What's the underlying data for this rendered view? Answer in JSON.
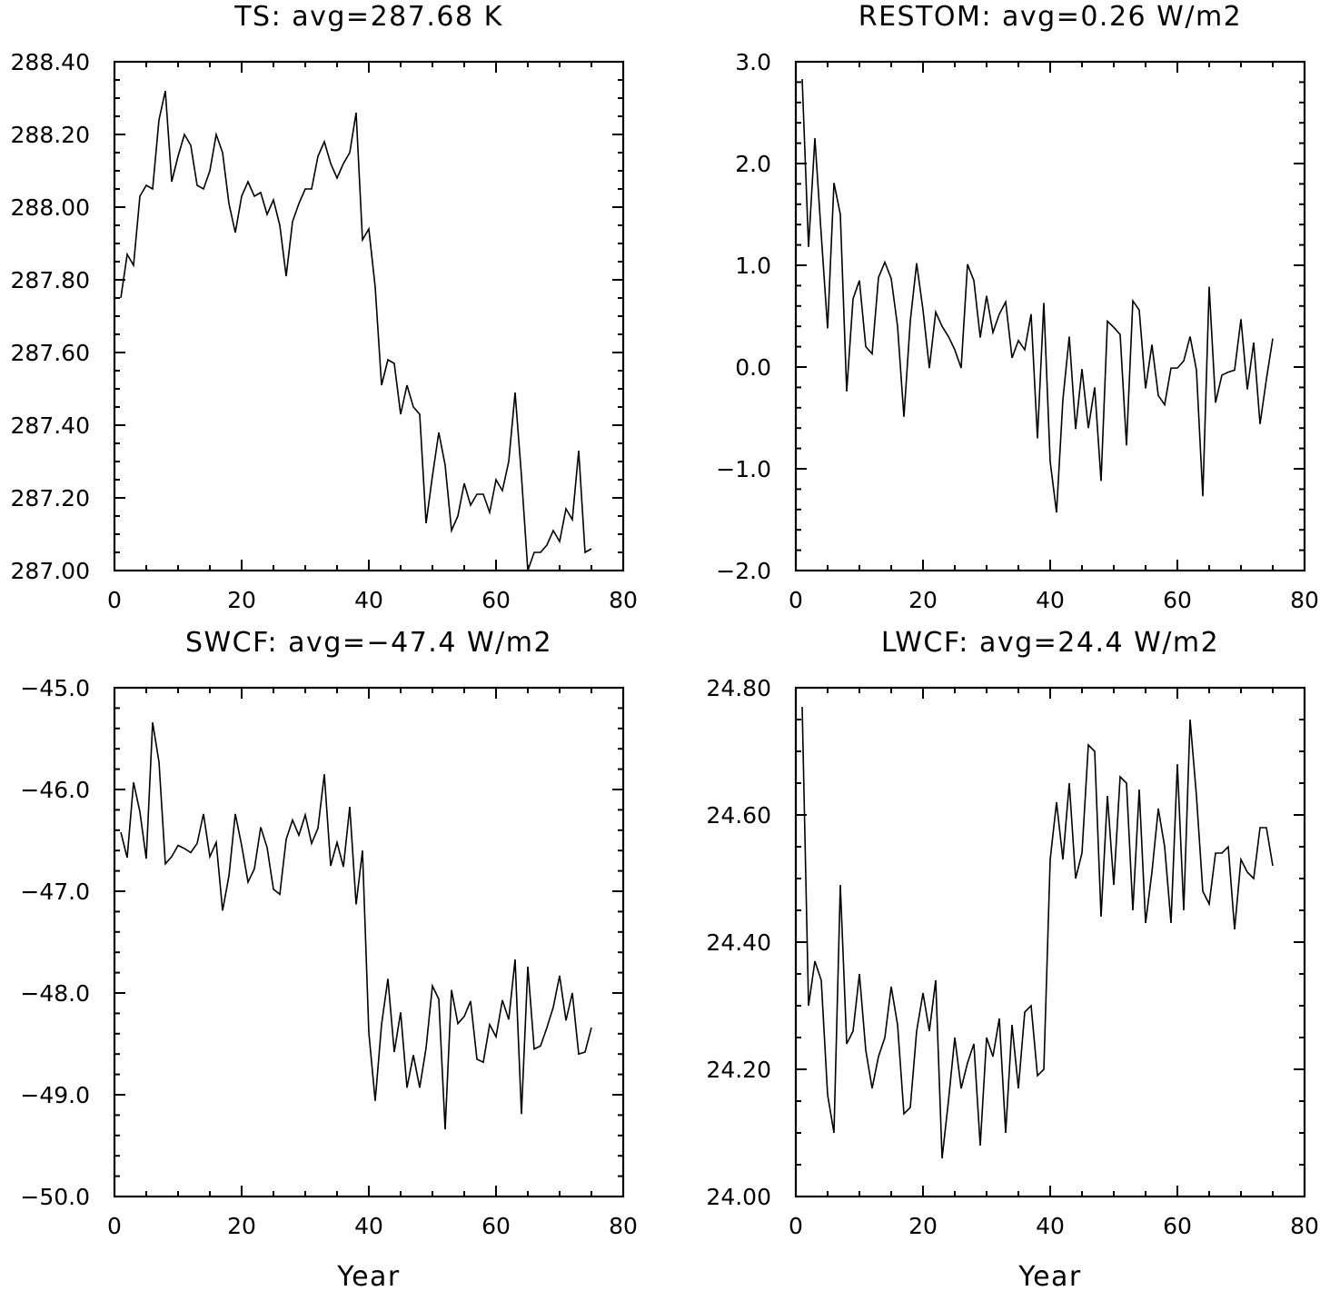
{
  "chart_data": [
    {
      "type": "line",
      "title": "TS: avg=287.68 K",
      "xlabel": "",
      "ylabel": "",
      "xlim": [
        0,
        80
      ],
      "ylim": [
        287.0,
        288.4
      ],
      "xticks": [
        0,
        20,
        40,
        60,
        80
      ],
      "xtick_labels": [
        "0",
        "20",
        "40",
        "60",
        "80"
      ],
      "yticks": [
        287.0,
        287.2,
        287.4,
        287.6,
        287.8,
        288.0,
        288.2,
        288.4
      ],
      "ytick_labels": [
        "287.00",
        "287.20",
        "287.40",
        "287.60",
        "287.80",
        "288.00",
        "288.20",
        "288.40"
      ],
      "x_minor_step": 5,
      "y_minor_step": 0.05,
      "x": [
        1,
        2,
        3,
        4,
        5,
        6,
        7,
        8,
        9,
        10,
        11,
        12,
        13,
        14,
        15,
        16,
        17,
        18,
        19,
        20,
        21,
        22,
        23,
        24,
        25,
        26,
        27,
        28,
        29,
        30,
        31,
        32,
        33,
        34,
        35,
        36,
        37,
        38,
        39,
        40,
        41,
        42,
        43,
        44,
        45,
        46,
        47,
        48,
        49,
        50,
        51,
        52,
        53,
        54,
        55,
        56,
        57,
        58,
        59,
        60,
        61,
        62,
        63,
        64,
        65,
        66,
        67,
        68,
        69,
        70,
        71,
        72,
        73,
        74,
        75
      ],
      "y": [
        287.75,
        287.87,
        287.84,
        288.03,
        288.06,
        288.05,
        288.24,
        288.32,
        288.07,
        288.14,
        288.2,
        288.17,
        288.06,
        288.05,
        288.1,
        288.2,
        288.15,
        288.01,
        287.93,
        288.03,
        288.07,
        288.03,
        288.04,
        287.98,
        288.02,
        287.95,
        287.81,
        287.96,
        288.01,
        288.05,
        288.05,
        288.14,
        288.18,
        288.12,
        288.08,
        288.12,
        288.15,
        288.26,
        287.91,
        287.94,
        287.78,
        287.51,
        287.58,
        287.57,
        287.43,
        287.51,
        287.45,
        287.43,
        287.13,
        287.26,
        287.38,
        287.29,
        287.11,
        287.15,
        287.24,
        287.18,
        287.21,
        287.21,
        287.16,
        287.25,
        287.22,
        287.3,
        287.49,
        287.26,
        287.0,
        287.05,
        287.05,
        287.07,
        287.11,
        287.08,
        287.17,
        287.14,
        287.33,
        287.05,
        287.06
      ],
      "grid": false
    },
    {
      "type": "line",
      "title": "RESTOM: avg=0.26 W/m2",
      "xlabel": "",
      "ylabel": "",
      "xlim": [
        0,
        80
      ],
      "ylim": [
        -2.0,
        3.0
      ],
      "xticks": [
        0,
        20,
        40,
        60,
        80
      ],
      "xtick_labels": [
        "0",
        "20",
        "40",
        "60",
        "80"
      ],
      "yticks": [
        -2.0,
        -1.0,
        0.0,
        1.0,
        2.0,
        3.0
      ],
      "ytick_labels": [
        "−2.0",
        "−1.0",
        "0.0",
        "1.0",
        "2.0",
        "3.0"
      ],
      "x_minor_step": 5,
      "y_minor_step": 0.2,
      "x": [
        1,
        2,
        3,
        4,
        5,
        6,
        7,
        8,
        9,
        10,
        11,
        12,
        13,
        14,
        15,
        16,
        17,
        18,
        19,
        20,
        21,
        22,
        23,
        24,
        25,
        26,
        27,
        28,
        29,
        30,
        31,
        32,
        33,
        34,
        35,
        36,
        37,
        38,
        39,
        40,
        41,
        42,
        43,
        44,
        45,
        46,
        47,
        48,
        49,
        50,
        51,
        52,
        53,
        54,
        55,
        56,
        57,
        58,
        59,
        60,
        61,
        62,
        63,
        64,
        65,
        66,
        67,
        68,
        69,
        70,
        71,
        72,
        73,
        74,
        75
      ],
      "y": [
        2.83,
        1.18,
        2.25,
        1.3,
        0.38,
        1.81,
        1.5,
        -0.24,
        0.67,
        0.85,
        0.2,
        0.13,
        0.88,
        1.03,
        0.87,
        0.4,
        -0.49,
        0.45,
        1.02,
        0.56,
        -0.01,
        0.54,
        0.4,
        0.3,
        0.17,
        -0.01,
        1.01,
        0.85,
        0.29,
        0.7,
        0.34,
        0.52,
        0.64,
        0.09,
        0.26,
        0.17,
        0.52,
        -0.7,
        0.63,
        -0.93,
        -1.43,
        -0.32,
        0.3,
        -0.61,
        -0.02,
        -0.6,
        -0.2,
        -1.12,
        0.45,
        0.39,
        0.32,
        -0.77,
        0.65,
        0.56,
        -0.21,
        0.22,
        -0.28,
        -0.37,
        -0.01,
        -0.01,
        0.06,
        0.3,
        -0.03,
        -1.27,
        0.79,
        -0.35,
        -0.08,
        -0.05,
        -0.03,
        0.47,
        -0.22,
        0.24,
        -0.56,
        -0.12,
        0.28
      ],
      "grid": false
    },
    {
      "type": "line",
      "title": "SWCF: avg=−47.4 W/m2",
      "xlabel": "Year",
      "ylabel": "",
      "xlim": [
        0,
        80
      ],
      "ylim": [
        -50.0,
        -45.0
      ],
      "xticks": [
        0,
        20,
        40,
        60,
        80
      ],
      "xtick_labels": [
        "0",
        "20",
        "40",
        "60",
        "80"
      ],
      "yticks": [
        -50.0,
        -49.0,
        -48.0,
        -47.0,
        -46.0,
        -45.0
      ],
      "ytick_labels": [
        "−50.0",
        "−49.0",
        "−48.0",
        "−47.0",
        "−46.0",
        "−45.0"
      ],
      "x_minor_step": 5,
      "y_minor_step": 0.2,
      "x": [
        1,
        2,
        3,
        4,
        5,
        6,
        7,
        8,
        9,
        10,
        11,
        12,
        13,
        14,
        15,
        16,
        17,
        18,
        19,
        20,
        21,
        22,
        23,
        24,
        25,
        26,
        27,
        28,
        29,
        30,
        31,
        32,
        33,
        34,
        35,
        36,
        37,
        38,
        39,
        40,
        41,
        42,
        43,
        44,
        45,
        46,
        47,
        48,
        49,
        50,
        51,
        52,
        53,
        54,
        55,
        56,
        57,
        58,
        59,
        60,
        61,
        62,
        63,
        64,
        65,
        66,
        67,
        68,
        69,
        70,
        71,
        72,
        73,
        74,
        75
      ],
      "y": [
        -46.42,
        -46.67,
        -45.93,
        -46.22,
        -46.68,
        -45.34,
        -45.73,
        -46.73,
        -46.66,
        -46.55,
        -46.58,
        -46.62,
        -46.53,
        -46.24,
        -46.66,
        -46.52,
        -47.19,
        -46.85,
        -46.24,
        -46.55,
        -46.91,
        -46.78,
        -46.37,
        -46.57,
        -46.98,
        -47.03,
        -46.49,
        -46.3,
        -46.45,
        -46.25,
        -46.53,
        -46.38,
        -45.85,
        -46.75,
        -46.52,
        -46.76,
        -46.17,
        -47.13,
        -46.6,
        -48.39,
        -49.06,
        -48.31,
        -47.86,
        -48.58,
        -48.19,
        -48.93,
        -48.61,
        -48.93,
        -48.54,
        -47.93,
        -48.06,
        -49.34,
        -47.97,
        -48.3,
        -48.23,
        -48.08,
        -48.65,
        -48.68,
        -48.31,
        -48.43,
        -48.07,
        -48.26,
        -47.67,
        -49.19,
        -47.74,
        -48.55,
        -48.52,
        -48.34,
        -48.14,
        -47.83,
        -48.27,
        -48.0,
        -48.6,
        -48.58,
        -48.34
      ],
      "grid": false
    },
    {
      "type": "line",
      "title": "LWCF: avg=24.4 W/m2",
      "xlabel": "Year",
      "ylabel": "",
      "xlim": [
        0,
        80
      ],
      "ylim": [
        24.0,
        24.8
      ],
      "xticks": [
        0,
        20,
        40,
        60,
        80
      ],
      "xtick_labels": [
        "0",
        "20",
        "40",
        "60",
        "80"
      ],
      "yticks": [
        24.0,
        24.2,
        24.4,
        24.6,
        24.8
      ],
      "ytick_labels": [
        "24.00",
        "24.20",
        "24.40",
        "24.60",
        "24.80"
      ],
      "x_minor_step": 5,
      "y_minor_step": 0.05,
      "x": [
        1,
        2,
        3,
        4,
        5,
        6,
        7,
        8,
        9,
        10,
        11,
        12,
        13,
        14,
        15,
        16,
        17,
        18,
        19,
        20,
        21,
        22,
        23,
        24,
        25,
        26,
        27,
        28,
        29,
        30,
        31,
        32,
        33,
        34,
        35,
        36,
        37,
        38,
        39,
        40,
        41,
        42,
        43,
        44,
        45,
        46,
        47,
        48,
        49,
        50,
        51,
        52,
        53,
        54,
        55,
        56,
        57,
        58,
        59,
        60,
        61,
        62,
        63,
        64,
        65,
        66,
        67,
        68,
        69,
        70,
        71,
        72,
        73,
        74,
        75
      ],
      "y": [
        24.77,
        24.3,
        24.37,
        24.34,
        24.16,
        24.1,
        24.49,
        24.24,
        24.26,
        24.35,
        24.23,
        24.17,
        24.22,
        24.25,
        24.33,
        24.27,
        24.13,
        24.14,
        24.26,
        24.32,
        24.26,
        24.34,
        24.06,
        24.15,
        24.25,
        24.17,
        24.21,
        24.24,
        24.08,
        24.25,
        24.22,
        24.28,
        24.1,
        24.27,
        24.17,
        24.29,
        24.3,
        24.19,
        24.2,
        24.53,
        24.62,
        24.53,
        24.65,
        24.5,
        24.54,
        24.71,
        24.7,
        24.44,
        24.63,
        24.49,
        24.66,
        24.65,
        24.45,
        24.64,
        24.43,
        24.51,
        24.61,
        24.55,
        24.43,
        24.68,
        24.45,
        24.75,
        24.63,
        24.48,
        24.46,
        24.54,
        24.54,
        24.55,
        24.42,
        24.53,
        24.51,
        24.5,
        24.58,
        24.58,
        24.52
      ],
      "grid": false
    }
  ]
}
